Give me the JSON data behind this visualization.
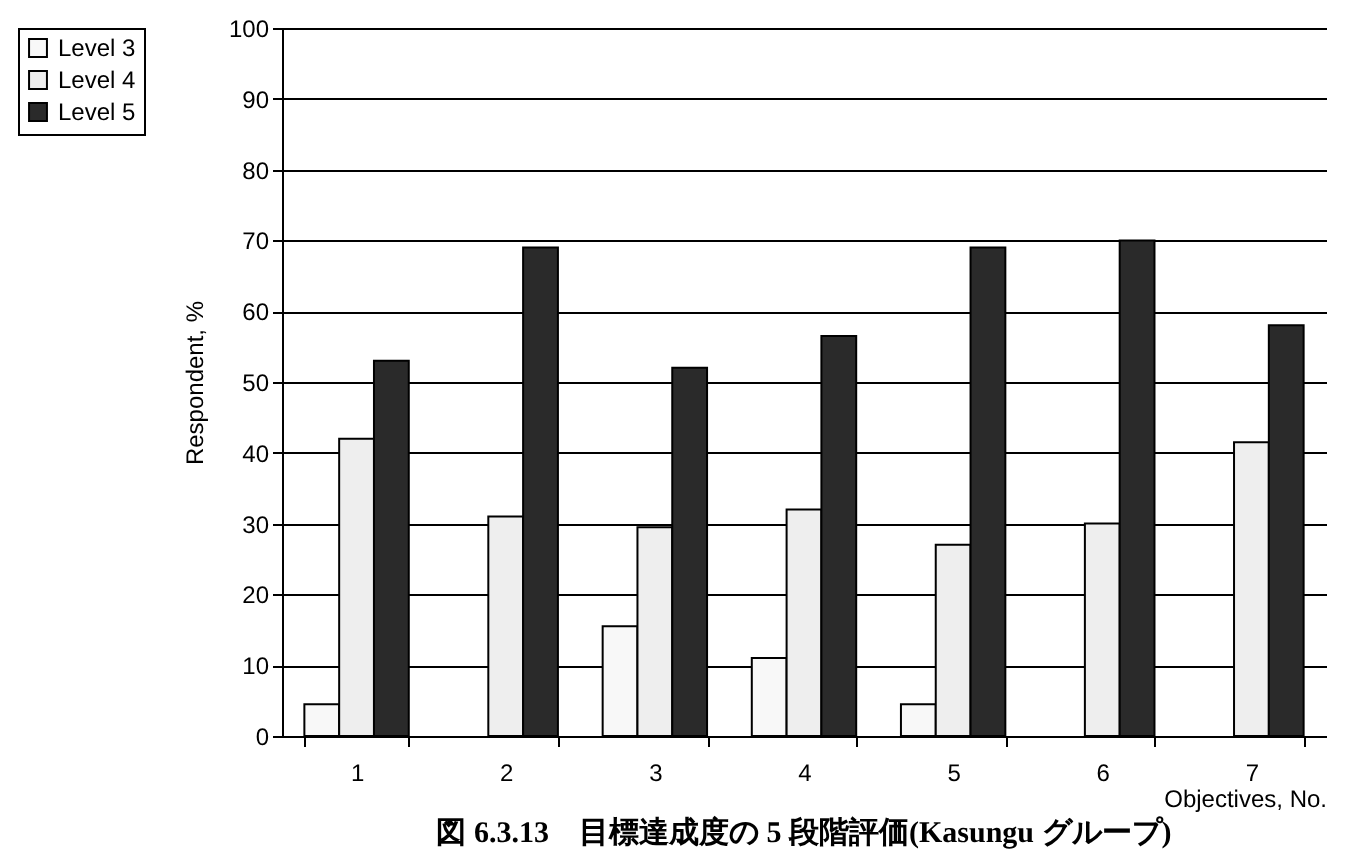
{
  "chart_data": {
    "type": "bar",
    "title": "図 6.3.13　目標達成度の 5 段階評価(Kasungu グループ)",
    "xlabel": "Objectives, No.",
    "ylabel": "Respondent, %",
    "categories": [
      "1",
      "2",
      "3",
      "4",
      "5",
      "6",
      "7"
    ],
    "series": [
      {
        "name": "Level 3",
        "color": "#f8f8f8",
        "values": [
          4.5,
          null,
          15.5,
          11,
          4.5,
          null,
          null
        ]
      },
      {
        "name": "Level 4",
        "color": "#eeeeee",
        "values": [
          42,
          31,
          29.5,
          32,
          27,
          30,
          41.5
        ]
      },
      {
        "name": "Level 5",
        "color": "#2a2a2a",
        "values": [
          53,
          69,
          52,
          56.5,
          69,
          70,
          58
        ]
      }
    ],
    "ylim": [
      0,
      100
    ],
    "yticks": [
      0,
      10,
      20,
      30,
      40,
      50,
      60,
      70,
      80,
      90,
      100
    ],
    "grid": "y",
    "legend": "top left"
  }
}
